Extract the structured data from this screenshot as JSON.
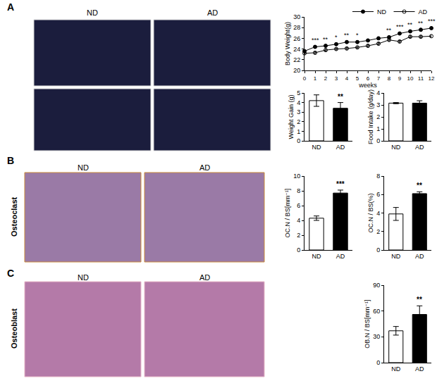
{
  "panels": [
    {
      "label": "A",
      "image_labels": [
        "ND",
        "AD"
      ]
    },
    {
      "label": "B",
      "row_label": "Osteoclast",
      "image_labels": [
        "ND",
        "AD"
      ]
    },
    {
      "label": "C",
      "row_label": "Osteoblast",
      "image_labels": [
        "ND",
        "AD"
      ]
    }
  ],
  "chart_data": [
    {
      "type": "line",
      "x_label": "weeks",
      "y_label": "Body Weight(g)",
      "x": [
        0,
        1,
        2,
        3,
        4,
        5,
        6,
        7,
        8,
        9,
        10,
        11,
        12
      ],
      "xlim": [
        0,
        12
      ],
      "xticks": [
        0,
        1,
        2,
        3,
        4,
        5,
        6,
        7,
        8,
        9,
        10,
        11,
        12
      ],
      "ylim": [
        20,
        30
      ],
      "yticks": [
        20,
        22,
        24,
        26,
        28,
        30
      ],
      "legend": "top right",
      "series": [
        {
          "name": "ND",
          "color": "#000000",
          "marker": "circle",
          "values": [
            23.6,
            24.4,
            24.6,
            24.9,
            25.3,
            25.3,
            25.6,
            26.0,
            26.2,
            26.9,
            27.3,
            27.6,
            27.9
          ],
          "errors": [
            0.2,
            0.2,
            0.2,
            0.2,
            0.2,
            0.2,
            0.2,
            0.2,
            0.2,
            0.2,
            0.2,
            0.2,
            0.2
          ]
        },
        {
          "name": "AD",
          "color": "#000000",
          "marker": "circle-open",
          "values": [
            23.2,
            23.3,
            23.8,
            24.0,
            24.1,
            24.3,
            24.6,
            25.0,
            25.7,
            25.4,
            26.3,
            26.3,
            26.4
          ],
          "errors": [
            0.2,
            0.2,
            0.2,
            0.2,
            0.2,
            0.2,
            0.2,
            0.2,
            0.2,
            0.2,
            0.2,
            0.2,
            0.2
          ]
        }
      ],
      "annotations": [
        {
          "x": 1,
          "text": "***"
        },
        {
          "x": 2,
          "text": "**"
        },
        {
          "x": 3,
          "text": "*"
        },
        {
          "x": 4,
          "text": "**"
        },
        {
          "x": 5,
          "text": "*"
        },
        {
          "x": 8,
          "text": "**"
        },
        {
          "x": 9,
          "text": "***"
        },
        {
          "x": 10,
          "text": "**"
        },
        {
          "x": 11,
          "text": "**"
        },
        {
          "x": 12,
          "text": "***"
        }
      ]
    },
    {
      "type": "bar",
      "y_label": "Weight Gain (g)",
      "categories": [
        "ND",
        "AD"
      ],
      "values": [
        4.2,
        3.4
      ],
      "errors": [
        0.6,
        0.6
      ],
      "colors": [
        "#ffffff",
        "#000000"
      ],
      "ylim": [
        0,
        5
      ],
      "yticks": [
        0,
        1,
        2,
        3,
        4,
        5
      ],
      "annotations": [
        {
          "category": "AD",
          "text": "**"
        }
      ]
    },
    {
      "type": "bar",
      "y_label": "Food Intake (g/day)",
      "categories": [
        "ND",
        "AD"
      ],
      "values": [
        3.15,
        3.15
      ],
      "errors": [
        0.05,
        0.2
      ],
      "colors": [
        "#ffffff",
        "#000000"
      ],
      "ylim": [
        0,
        4
      ],
      "yticks": [
        0,
        1,
        2,
        3,
        4
      ],
      "annotations": []
    },
    {
      "type": "bar",
      "y_label": "OC.N / BS[mm⁻¹]",
      "categories": [
        "ND",
        "AD"
      ],
      "values": [
        4.3,
        7.7
      ],
      "errors": [
        0.3,
        0.4
      ],
      "colors": [
        "#ffffff",
        "#000000"
      ],
      "ylim": [
        0,
        10
      ],
      "yticks": [
        0,
        2,
        4,
        6,
        8,
        10
      ],
      "annotations": [
        {
          "category": "AD",
          "text": "***"
        }
      ]
    },
    {
      "type": "bar",
      "y_label": "OC.N / BS(%)",
      "categories": [
        "ND",
        "AD"
      ],
      "values": [
        3.9,
        6.1
      ],
      "errors": [
        0.7,
        0.2
      ],
      "colors": [
        "#ffffff",
        "#000000"
      ],
      "ylim": [
        0,
        8
      ],
      "yticks": [
        0,
        2,
        4,
        6,
        8
      ],
      "annotations": [
        {
          "category": "AD",
          "text": "**"
        }
      ]
    },
    {
      "type": "bar",
      "y_label": "OB.N / BS[mm⁻¹]",
      "categories": [
        "ND",
        "AD"
      ],
      "values": [
        37,
        56
      ],
      "errors": [
        5,
        10
      ],
      "colors": [
        "#ffffff",
        "#000000"
      ],
      "ylim": [
        0,
        90
      ],
      "yticks": [
        0,
        30,
        60,
        90
      ],
      "annotations": [
        {
          "category": "AD",
          "text": "**"
        }
      ]
    }
  ]
}
